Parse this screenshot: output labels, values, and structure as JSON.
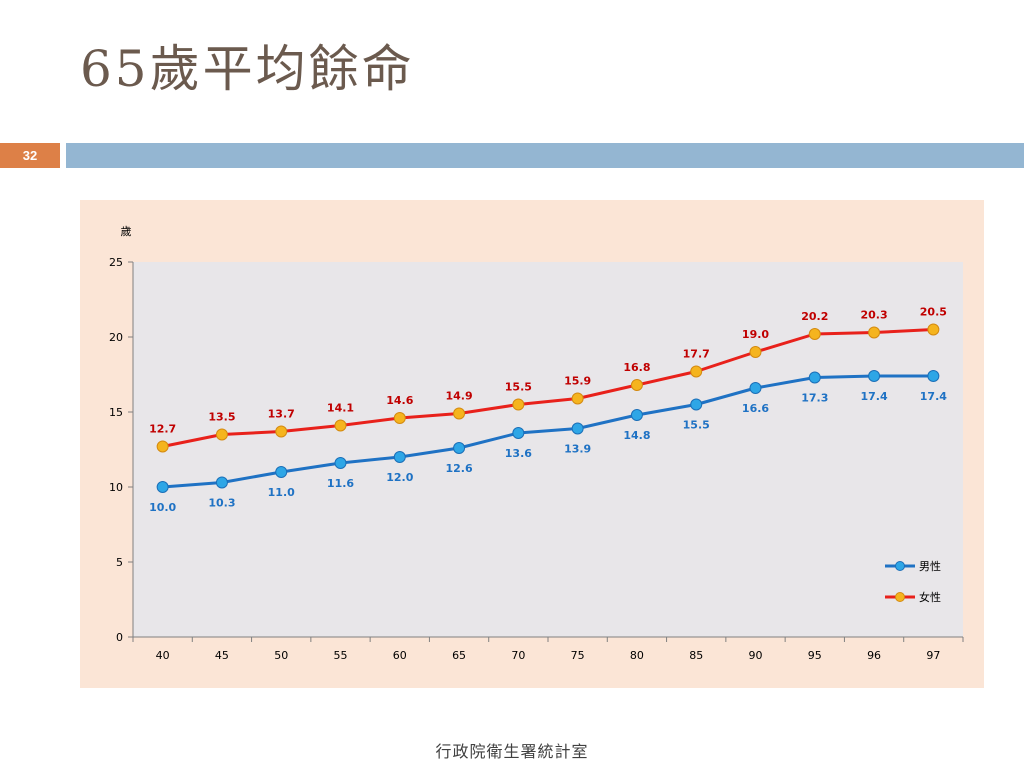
{
  "slide": {
    "title": "65歲平均餘命",
    "page_number": "32",
    "footer": "行政院衛生署統計室"
  },
  "chart_data": {
    "type": "line",
    "title": "",
    "xlabel": "",
    "ylabel": "歲",
    "categories": [
      "40",
      "45",
      "50",
      "55",
      "60",
      "65",
      "70",
      "75",
      "80",
      "85",
      "90",
      "95",
      "96",
      "97"
    ],
    "ylim": [
      0,
      25
    ],
    "yticks": [
      0,
      5,
      10,
      15,
      20,
      25
    ],
    "grid": false,
    "legend_position": "bottom-right",
    "series": [
      {
        "name": "男性",
        "color": "#1f72c4",
        "marker_color": "#2ea6e6",
        "label_color": "#1f72c4",
        "values": [
          10.0,
          10.3,
          11.0,
          11.6,
          12.0,
          12.6,
          13.6,
          13.9,
          14.8,
          15.5,
          16.6,
          17.3,
          17.4,
          17.4
        ],
        "labels": [
          "10.0",
          "10.3",
          "11.0",
          "11.6",
          "12.0",
          "12.6",
          "13.6",
          "13.9",
          "14.8",
          "15.5",
          "16.6",
          "17.3",
          "17.4",
          "17.4"
        ]
      },
      {
        "name": "女性",
        "color": "#e8211b",
        "marker_color": "#f5b41e",
        "label_color": "#c00000",
        "values": [
          12.7,
          13.5,
          13.7,
          14.1,
          14.6,
          14.9,
          15.5,
          15.9,
          16.8,
          17.7,
          19.0,
          20.2,
          20.3,
          20.5
        ],
        "labels": [
          "12.7",
          "13.5",
          "13.7",
          "14.1",
          "14.6",
          "14.9",
          "15.5",
          "15.9",
          "16.8",
          "17.7",
          "19.0",
          "20.2",
          "20.3",
          "20.5"
        ]
      }
    ]
  }
}
